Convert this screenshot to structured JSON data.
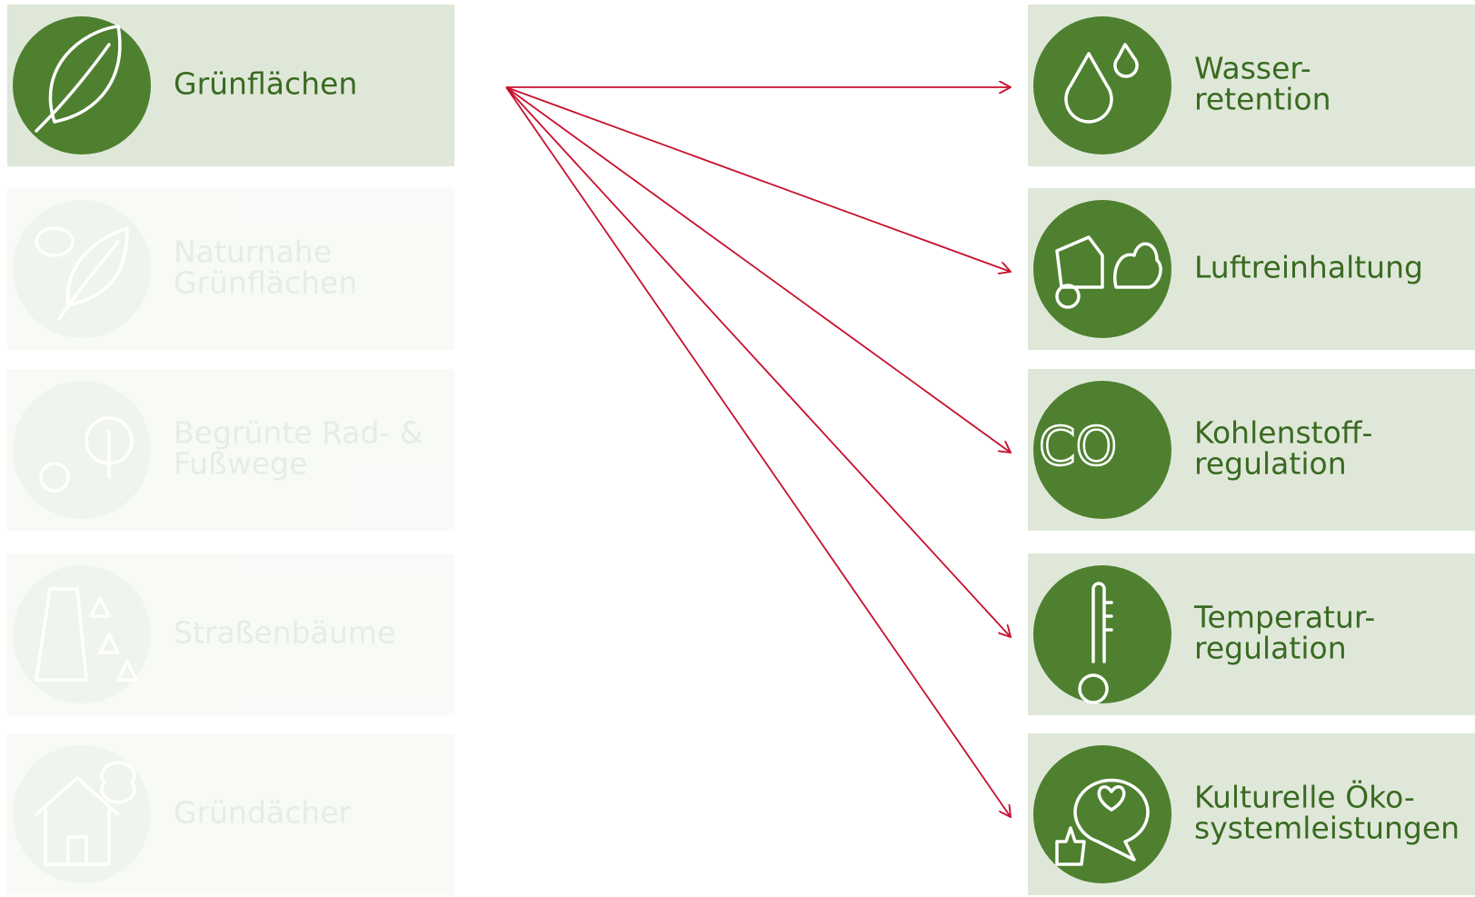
{
  "sources": [
    {
      "lines": [
        "Grünflächen"
      ],
      "active": true
    },
    {
      "lines": [
        "Naturnahe",
        "Grünflächen"
      ],
      "active": false
    },
    {
      "lines": [
        "Begrünte Rad- &",
        "Fußwege"
      ],
      "active": false
    },
    {
      "lines": [
        "Straßenbäume"
      ],
      "active": false
    },
    {
      "lines": [
        "Gründächer"
      ],
      "active": false
    }
  ],
  "services": [
    {
      "lines": [
        "Wasser-",
        "retention"
      ]
    },
    {
      "lines": [
        "Luftreinhaltung"
      ]
    },
    {
      "lines": [
        "Kohlenstoff-",
        "regulation"
      ]
    },
    {
      "lines": [
        "Temperatur-",
        "regulation"
      ]
    },
    {
      "lines": [
        "Kulturelle Öko-",
        "systemleistungen"
      ]
    }
  ]
}
